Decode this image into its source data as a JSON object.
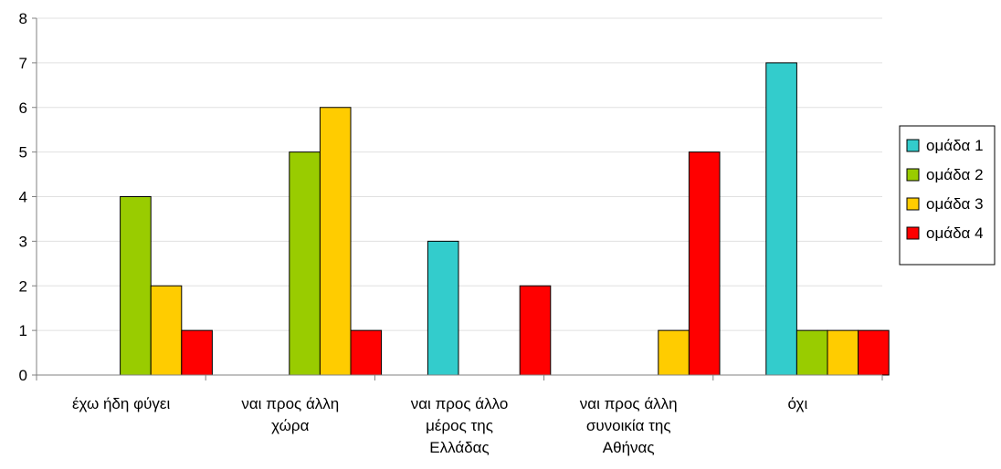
{
  "chart_data": {
    "type": "bar",
    "categories": [
      "έχω ήδη φύγει",
      "ναι προς άλλη χώρα",
      "ναι προς άλλο μέρος της Ελλάδας",
      "ναι προς άλλη συνοικία της Αθήνας",
      "όχι"
    ],
    "category_lines": [
      [
        "έχω ήδη φύγει"
      ],
      [
        "ναι προς άλλη",
        "χώρα"
      ],
      [
        "ναι προς άλλο",
        "μέρος της",
        "Ελλάδας"
      ],
      [
        "ναι προς άλλη",
        "συνοικία της",
        "Αθήνας"
      ],
      [
        "όχι"
      ]
    ],
    "series": [
      {
        "name": "ομάδα 1",
        "color": "#33cccc",
        "values": [
          0,
          0,
          3,
          0,
          7
        ]
      },
      {
        "name": "ομάδα 2",
        "color": "#99cc00",
        "values": [
          4,
          5,
          0,
          0,
          1
        ]
      },
      {
        "name": "ομάδα 3",
        "color": "#ffcc00",
        "values": [
          2,
          6,
          0,
          1,
          1
        ]
      },
      {
        "name": "ομάδα 4",
        "color": "#ff0000",
        "values": [
          1,
          1,
          2,
          5,
          1
        ]
      }
    ],
    "y_ticks": [
      "0",
      "1",
      "2",
      "3",
      "4",
      "5",
      "6",
      "7",
      "8"
    ],
    "ylim": [
      0,
      8
    ],
    "grid": true,
    "legend_position": "right"
  }
}
